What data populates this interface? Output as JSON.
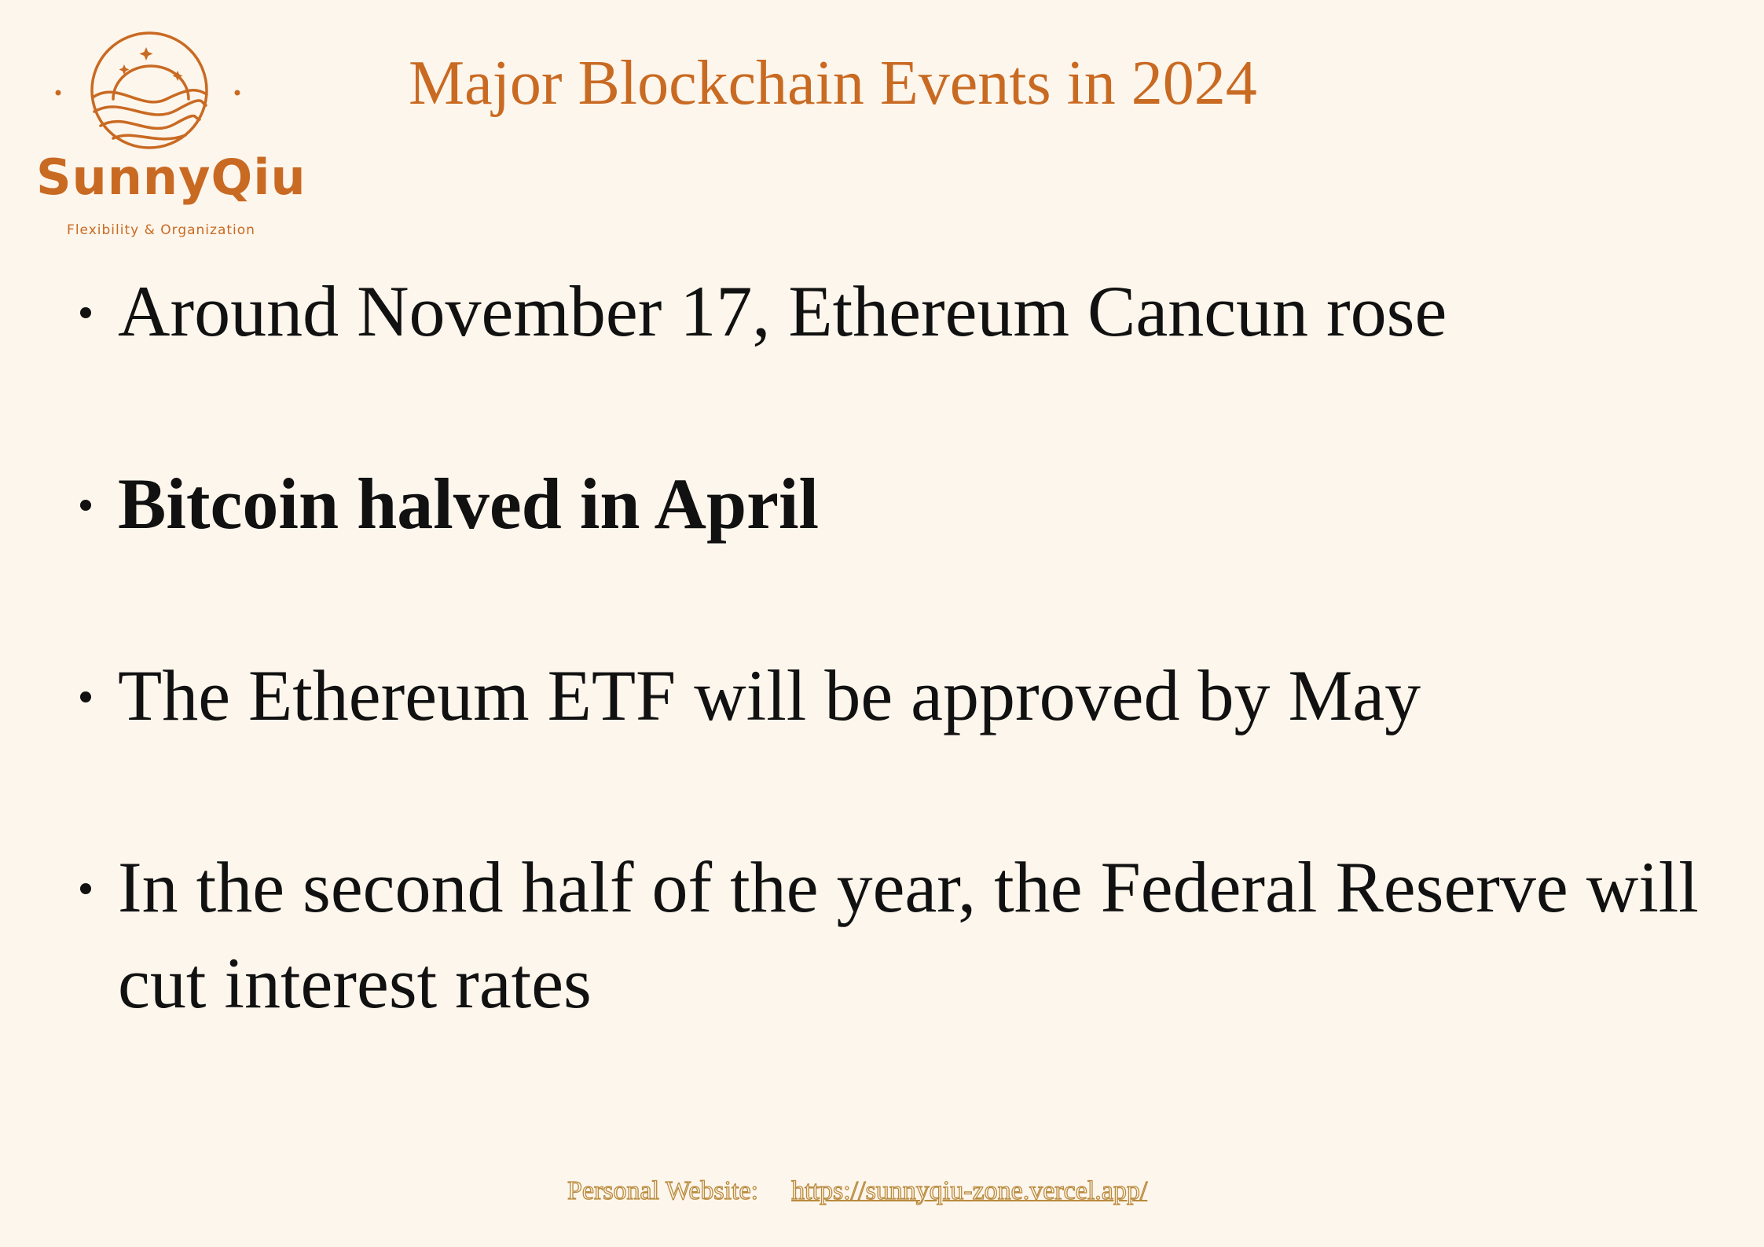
{
  "colors": {
    "background": "#fdf6ec",
    "accent": "#c96a23",
    "text": "#111111",
    "footer_outline": "#b98a3d"
  },
  "logo": {
    "icon": "sunrise-over-dunes-icon",
    "brand": "SunnyQiu",
    "tagline": "Flexibility & Organization"
  },
  "title": "Major Blockchain Events in 2024",
  "events": [
    {
      "text": "Around November 17, Ethereum Cancun rose"
    },
    {
      "text": "Bitcoin halved in April"
    },
    {
      "text": "The Ethereum ETF will be approved by May"
    },
    {
      "text": "In the second half of the year, the Federal Reserve will cut interest rates"
    }
  ],
  "footer": {
    "label": "Personal Website:",
    "url": "https://sunnyqiu-zone.vercel.app/"
  }
}
